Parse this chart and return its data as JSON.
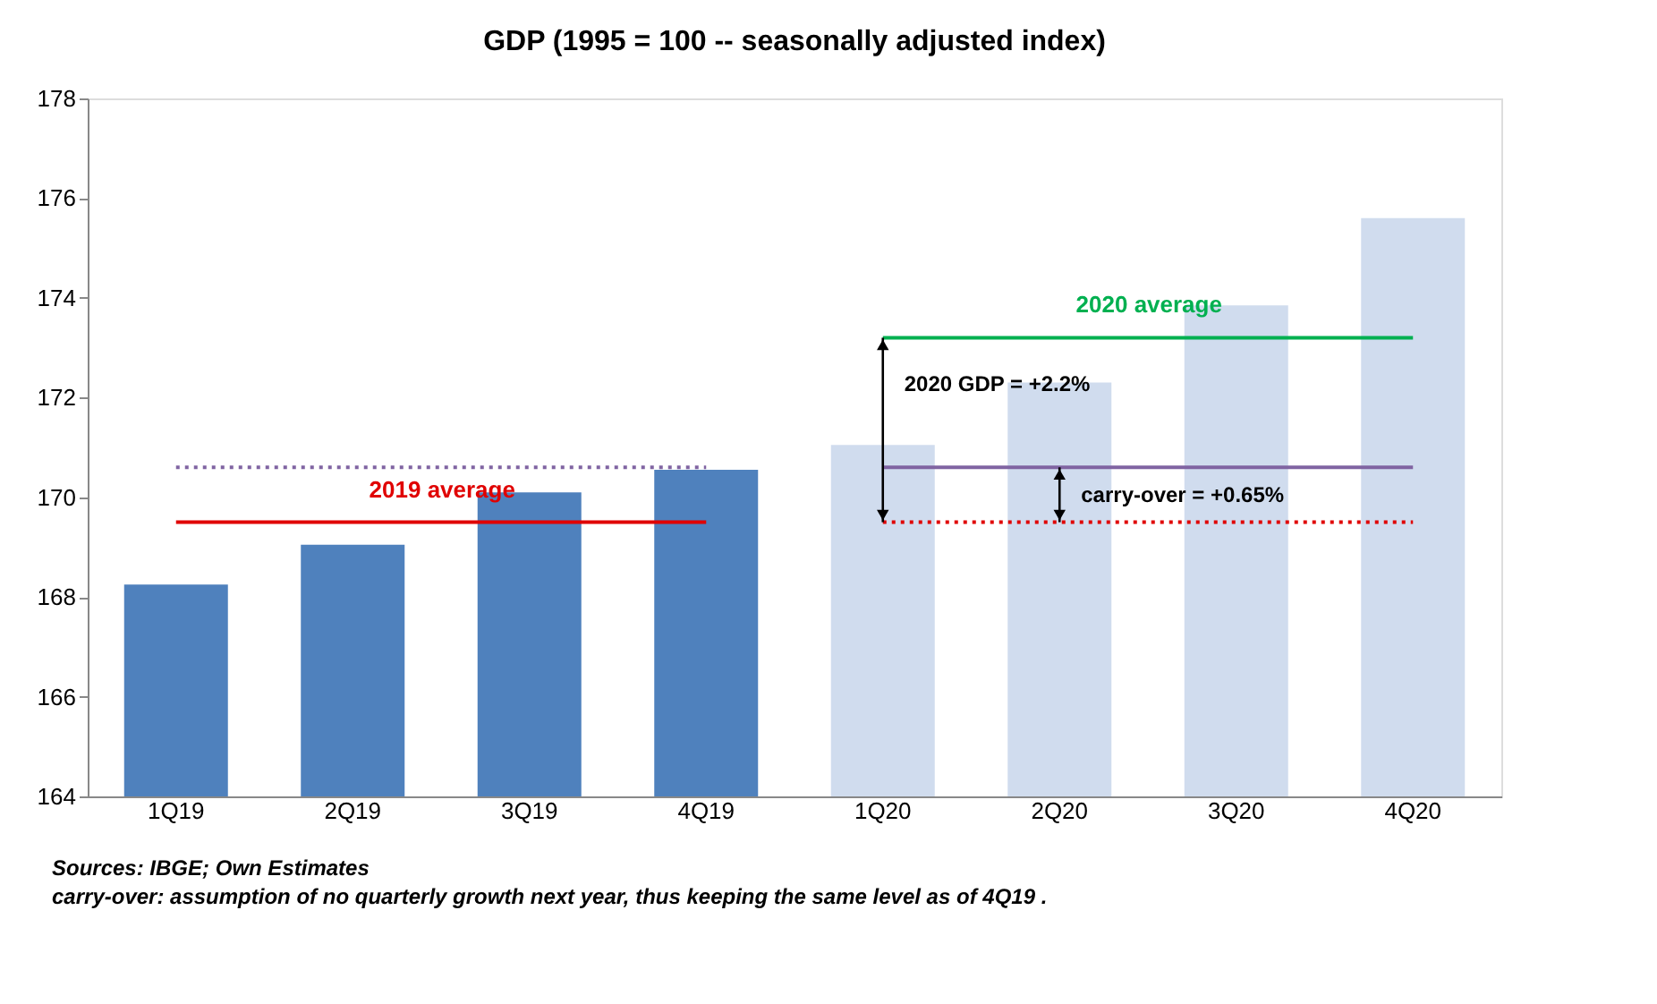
{
  "chart_data": {
    "type": "bar",
    "title": "GDP (1995 = 100 -- seasonally adjusted index)",
    "categories": [
      "1Q19",
      "2Q19",
      "3Q19",
      "4Q19",
      "1Q20",
      "2Q20",
      "3Q20",
      "4Q20"
    ],
    "ylim": [
      164,
      178
    ],
    "yticks": [
      164,
      166,
      168,
      170,
      172,
      174,
      176,
      178
    ],
    "grid": false,
    "legend": false,
    "series": [
      {
        "values": [
          168.25,
          169.05,
          170.1,
          170.55,
          171.05,
          172.3,
          173.85,
          175.6
        ],
        "colors": [
          "#4f81bd",
          "#4f81bd",
          "#4f81bd",
          "#4f81bd",
          "#d0dcee",
          "#d0dcee",
          "#d0dcee",
          "#d0dcee"
        ]
      },
      {
        "type": "line",
        "name": "2019 average",
        "color": "#e00000",
        "line_style": "solid",
        "values": [
          169.5,
          169.5,
          169.5,
          169.5,
          null,
          null,
          null,
          null
        ]
      },
      {
        "type": "line",
        "color": "#e00000",
        "line_style": "dotted",
        "values": [
          null,
          null,
          null,
          null,
          169.5,
          169.5,
          169.5,
          169.5
        ]
      },
      {
        "type": "line",
        "color": "#8064a2",
        "line_style": "dotted",
        "values": [
          170.6,
          170.6,
          170.6,
          170.6,
          null,
          null,
          null,
          null
        ]
      },
      {
        "type": "line",
        "color": "#8064a2",
        "line_style": "solid",
        "values": [
          null,
          null,
          null,
          null,
          170.6,
          170.6,
          170.6,
          170.6
        ]
      },
      {
        "type": "line",
        "name": "2020 average",
        "color": "#00b050",
        "line_style": "solid",
        "values": [
          null,
          null,
          null,
          null,
          173.2,
          173.2,
          173.2,
          173.2
        ]
      }
    ],
    "annotations": [
      "2020 GDP =  +2.2%",
      "carry-over = +0.65%",
      "Sources: IBGE; Own Estimates",
      "carry-over: assumption of no quarterly growth next year, thus keeping the same level as of 4Q19 ."
    ]
  }
}
